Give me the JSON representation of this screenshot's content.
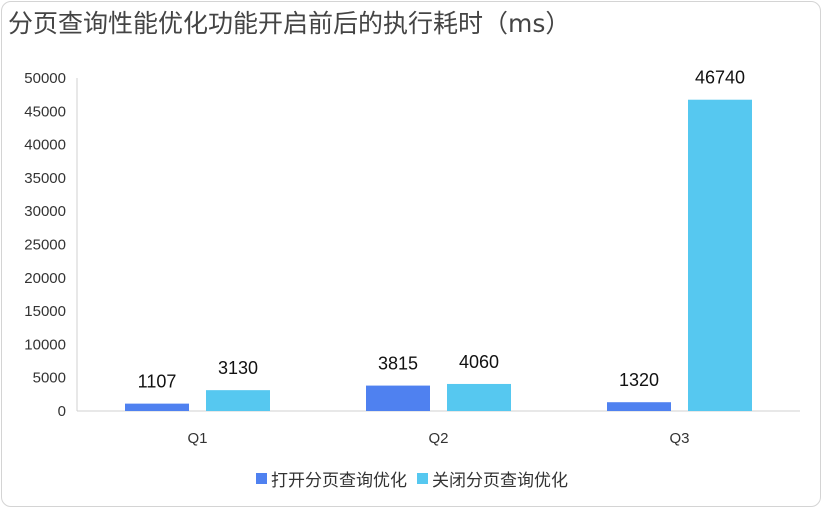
{
  "chart_data": {
    "type": "bar",
    "title": "分页查询性能优化功能开启前后的执行耗时（ms）",
    "categories": [
      "Q1",
      "Q2",
      "Q3"
    ],
    "series": [
      {
        "name": "打开分页查询优化",
        "values": [
          1107,
          3815,
          1320
        ],
        "color": "#4f81f0"
      },
      {
        "name": "关闭分页查询优化",
        "values": [
          3130,
          4060,
          46740
        ],
        "color": "#56c8f0"
      }
    ],
    "ylim": [
      0,
      50000
    ],
    "yticks": [
      0,
      5000,
      10000,
      15000,
      20000,
      25000,
      30000,
      35000,
      40000,
      45000,
      50000
    ],
    "xlabel": "",
    "ylabel": "",
    "legend": "bottom",
    "grid": false
  }
}
